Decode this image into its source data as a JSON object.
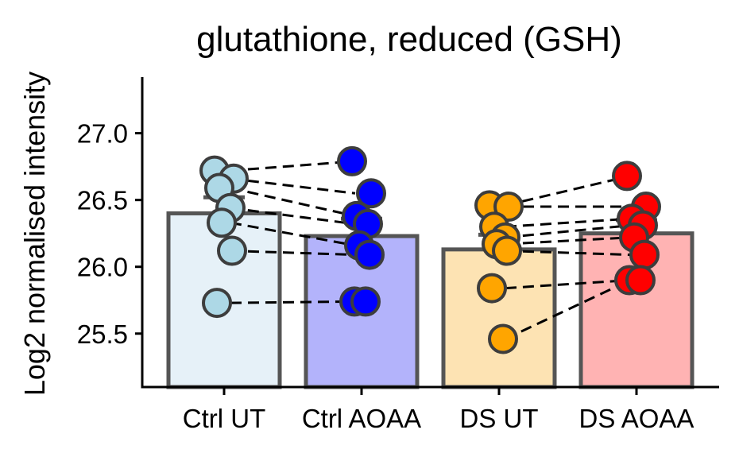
{
  "chart_data": {
    "type": "bar",
    "title": "glutathione, reduced (GSH)",
    "xlabel": "",
    "ylabel": "Log2 normalised intensity",
    "ylim": [
      25.1,
      27.42
    ],
    "yticks": [
      "25.5",
      "26.0",
      "26.5",
      "27.0"
    ],
    "grid": false,
    "categories": [
      "Ctrl UT",
      "Ctrl AOAA",
      "DS UT",
      "DS AOAA"
    ],
    "values": [
      26.4,
      26.23,
      26.13,
      26.25
    ],
    "error_upper": [
      26.52,
      26.36,
      26.24,
      26.35
    ],
    "bar_colors": [
      "#e6f1f8",
      "#b3b3fb",
      "#fde3b3",
      "#ffb3b3"
    ],
    "point_colors": [
      "#add8e6",
      "#0000ff",
      "#ffa500",
      "#ff0000"
    ],
    "points": [
      [
        26.72,
        26.66,
        26.59,
        26.44,
        26.33,
        26.12,
        25.73
      ],
      [
        26.79,
        26.55,
        26.38,
        26.32,
        26.16,
        26.09,
        25.74,
        25.74
      ],
      [
        26.46,
        26.45,
        26.3,
        26.22,
        26.17,
        26.12,
        25.84,
        25.46
      ],
      [
        26.68,
        26.45,
        26.36,
        26.31,
        26.22,
        26.09,
        25.9,
        25.9
      ]
    ],
    "paired_lines": [
      [
        0,
        1,
        26.72,
        26.79
      ],
      [
        0,
        1,
        26.66,
        26.55
      ],
      [
        0,
        1,
        26.59,
        26.38
      ],
      [
        0,
        1,
        26.44,
        26.32
      ],
      [
        0,
        1,
        26.33,
        26.16
      ],
      [
        0,
        1,
        26.12,
        26.09
      ],
      [
        0,
        1,
        25.73,
        25.74
      ],
      [
        2,
        3,
        26.46,
        26.68
      ],
      [
        2,
        3,
        26.45,
        26.45
      ],
      [
        2,
        3,
        26.3,
        26.36
      ],
      [
        2,
        3,
        26.22,
        26.31
      ],
      [
        2,
        3,
        26.17,
        26.22
      ],
      [
        2,
        3,
        26.12,
        26.09
      ],
      [
        2,
        3,
        25.84,
        25.9
      ],
      [
        2,
        3,
        25.46,
        25.9
      ]
    ]
  }
}
